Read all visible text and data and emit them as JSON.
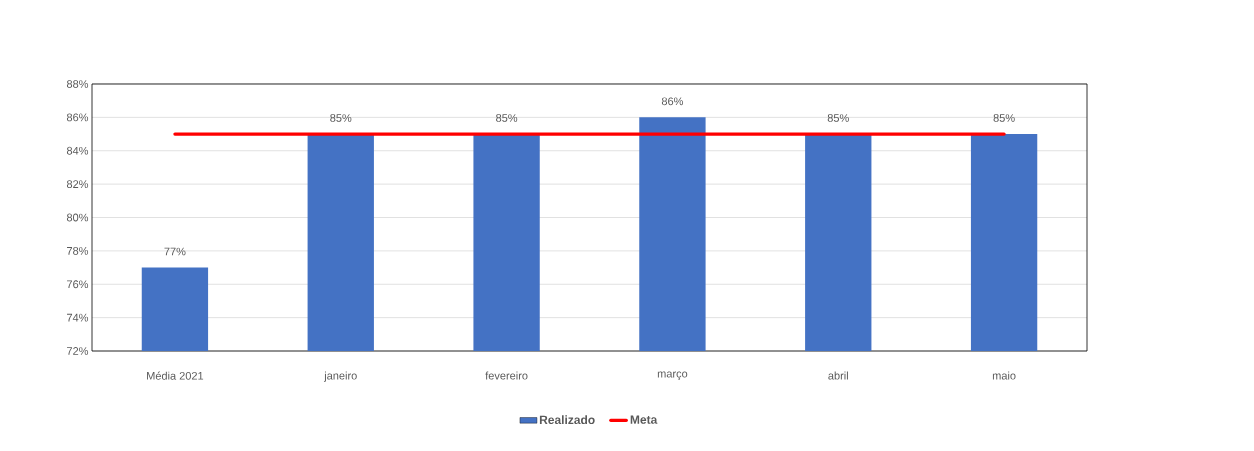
{
  "chart_data": {
    "type": "bar",
    "categories": [
      "Média 2021",
      "janeiro",
      "fevereiro",
      "março",
      "abril",
      "maio"
    ],
    "series": [
      {
        "name": "Realizado",
        "color": "#4472c4",
        "values": [
          77,
          85,
          85,
          86,
          85,
          85
        ],
        "value_labels": [
          "77%",
          "85%",
          "85%",
          "86%",
          "85%",
          "85%"
        ]
      },
      {
        "name": "Meta",
        "type": "line",
        "color": "#ff0000",
        "values": [
          85,
          85,
          85,
          85,
          85,
          85
        ]
      }
    ],
    "ylim": [
      72,
      88
    ],
    "yticks": [
      {
        "value": 72,
        "label": "72%"
      },
      {
        "value": 74,
        "label": "74%"
      },
      {
        "value": 76,
        "label": "76%"
      },
      {
        "value": 78,
        "label": "78%"
      },
      {
        "value": 80,
        "label": "80%"
      },
      {
        "value": 82,
        "label": "82%"
      },
      {
        "value": 84,
        "label": "84%"
      },
      {
        "value": 86,
        "label": "86%"
      },
      {
        "value": 88,
        "label": "88%"
      }
    ],
    "grid": "y",
    "legend": "bottom"
  }
}
